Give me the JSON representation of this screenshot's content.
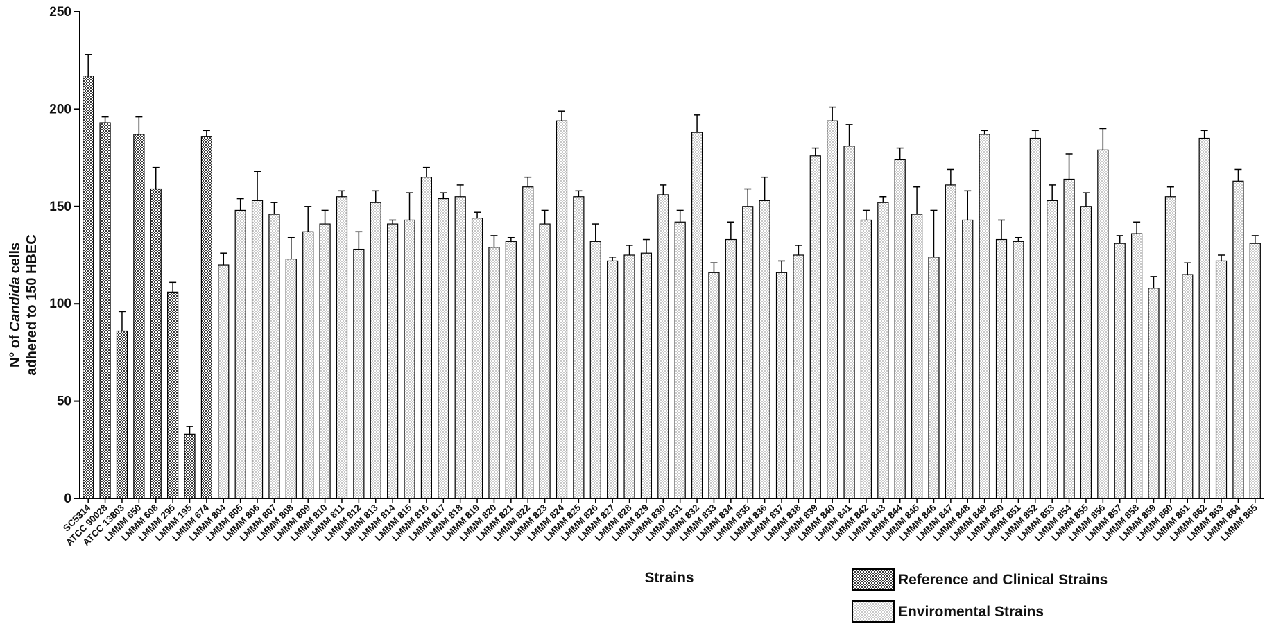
{
  "chart_data": {
    "type": "bar",
    "ylabel": [
      "N° of",
      "Candida",
      "cells",
      "adhered to 150 HBEC"
    ],
    "xlabel": "Strains",
    "categories": [
      "SC5314",
      "ATCC 90028",
      "ATCC 13803",
      "LMMM 650",
      "LMMM 608",
      "LMMM 295",
      "LMMM 195",
      "LMMM 674",
      "LMMM 804",
      "LMMM 805",
      "LMMM 806",
      "LMMM 807",
      "LMMM 808",
      "LMMM 809",
      "LMMM 810",
      "LMMM 811",
      "LMMM 812",
      "LMMM 813",
      "LMMM 814",
      "LMMM 815",
      "LMMM 816",
      "LMMM 817",
      "LMMM 818",
      "LMMM 819",
      "LMMM 820",
      "LMMM 821",
      "LMMM 822",
      "LMMM 823",
      "LMMM 824",
      "LMMM 825",
      "LMMM 826",
      "LMMM 827",
      "LMMM 828",
      "LMMM 829",
      "LMMM 830",
      "LMMM 831",
      "LMMM 832",
      "LMMM 833",
      "LMMM 834",
      "LMMM 835",
      "LMMM 836",
      "LMMM 837",
      "LMMM 838",
      "LMMM 839",
      "LMMM 840",
      "LMMM 841",
      "LMMM 842",
      "LMMM 843",
      "LMMM 844",
      "LMMM 845",
      "LMMM 846",
      "LMMM 847",
      "LMMM 848",
      "LMMM 849",
      "LMMM 850",
      "LMMM 851",
      "LMMM 852",
      "LMMM 853",
      "LMMM 854",
      "LMMM 855",
      "LMMM 856",
      "LMMM 857",
      "LMMM 858",
      "LMMM 859",
      "LMMM 860",
      "LMMM 861",
      "LMMM 862",
      "LMMM 863",
      "LMMM 864",
      "LMMM 865"
    ],
    "series": [
      {
        "name": "Reference and Clinical Strains",
        "color": "#3a3a3a",
        "values": [
          217,
          193,
          86,
          187,
          159,
          106,
          33,
          186,
          null,
          null,
          null,
          null,
          null,
          null,
          null,
          null,
          null,
          null,
          null,
          null,
          null,
          null,
          null,
          null,
          null,
          null,
          null,
          null,
          null,
          null,
          null,
          null,
          null,
          null,
          null,
          null,
          null,
          null,
          null,
          null,
          null,
          null,
          null,
          null,
          null,
          null,
          null,
          null,
          null,
          null,
          null,
          null,
          null,
          null,
          null,
          null,
          null,
          null,
          null,
          null,
          null,
          null,
          null,
          null,
          null,
          null,
          null,
          null,
          null,
          null
        ],
        "errors": [
          11,
          3,
          10,
          9,
          11,
          5,
          4,
          3,
          null,
          null,
          null,
          null,
          null,
          null,
          null,
          null,
          null,
          null,
          null,
          null,
          null,
          null,
          null,
          null,
          null,
          null,
          null,
          null,
          null,
          null,
          null,
          null,
          null,
          null,
          null,
          null,
          null,
          null,
          null,
          null,
          null,
          null,
          null,
          null,
          null,
          null,
          null,
          null,
          null,
          null,
          null,
          null,
          null,
          null,
          null,
          null,
          null,
          null,
          null,
          null,
          null,
          null,
          null,
          null,
          null,
          null,
          null,
          null,
          null,
          null
        ]
      },
      {
        "name": "Enviromental Strains",
        "color": "#c8c8c8",
        "values": [
          null,
          null,
          null,
          null,
          null,
          null,
          null,
          null,
          120,
          148,
          153,
          146,
          123,
          137,
          141,
          155,
          128,
          152,
          141,
          143,
          165,
          154,
          155,
          144,
          129,
          132,
          160,
          141,
          194,
          155,
          132,
          122,
          125,
          126,
          156,
          142,
          188,
          116,
          133,
          150,
          153,
          116,
          125,
          176,
          194,
          181,
          143,
          152,
          174,
          146,
          124,
          161,
          143,
          187,
          133,
          132,
          185,
          153,
          164,
          150,
          179,
          131,
          136,
          108,
          155,
          115,
          185,
          122,
          163,
          131
        ],
        "errors": [
          null,
          null,
          null,
          null,
          null,
          null,
          null,
          null,
          6,
          6,
          15,
          6,
          11,
          13,
          7,
          3,
          9,
          6,
          2,
          14,
          5,
          3,
          6,
          3,
          6,
          2,
          5,
          7,
          5,
          3,
          9,
          2,
          5,
          7,
          5,
          6,
          9,
          5,
          9,
          9,
          12,
          6,
          5,
          4,
          7,
          11,
          5,
          3,
          6,
          14,
          24,
          8,
          15,
          2,
          10,
          2,
          4,
          8,
          13,
          7,
          11,
          4,
          6,
          6,
          5,
          6,
          4,
          3,
          6,
          4
        ]
      }
    ],
    "ylim": [
      0,
      250
    ],
    "yticks": [
      0,
      50,
      100,
      150,
      200,
      250
    ]
  }
}
